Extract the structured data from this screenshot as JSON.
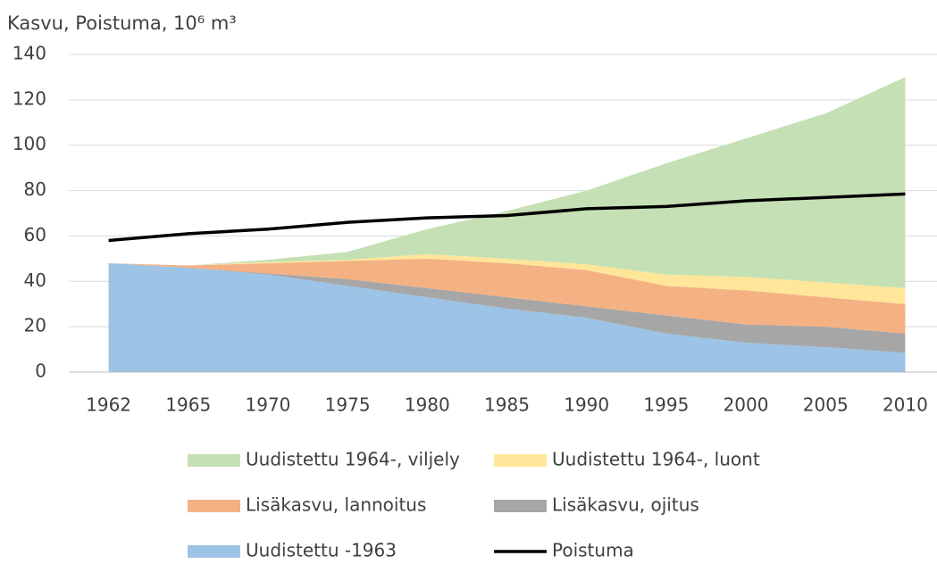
{
  "chart_data": {
    "type": "area",
    "stacked": true,
    "title": "Kasvu, Poistuma, 10⁶ m³",
    "categories": [
      "1962",
      "1965",
      "1970",
      "1975",
      "1980",
      "1985",
      "1990",
      "1995",
      "2000",
      "2005",
      "2010"
    ],
    "series": [
      {
        "name": "Uudistettu -1963",
        "color": "#9dc3e6",
        "values": [
          48,
          46,
          43,
          38,
          33,
          28,
          24,
          17,
          13,
          11,
          8.5
        ]
      },
      {
        "name": "Lisäkasvu, ojitus",
        "color": "#a6a6a6",
        "values": [
          0,
          0,
          0.5,
          3,
          4,
          5,
          5,
          8,
          8,
          9,
          8.5
        ]
      },
      {
        "name": "Lisäkasvu, lannoitus",
        "color": "#f4b183",
        "values": [
          0,
          1,
          4.5,
          8,
          13,
          15,
          16,
          13,
          15,
          13,
          13
        ]
      },
      {
        "name": "Uudistettu 1964-, luont",
        "color": "#ffe699",
        "values": [
          0,
          0,
          0.5,
          0.5,
          2,
          2,
          2.5,
          5,
          6,
          6.5,
          7
        ]
      },
      {
        "name": "Uudistettu 1964-, viljely",
        "color": "#c5e0b4",
        "values": [
          0,
          0,
          1,
          3.5,
          11,
          21,
          32.5,
          49,
          61,
          74.5,
          93
        ]
      },
      {
        "name": "Poistuma",
        "color": "#000000",
        "type": "line",
        "values": [
          58,
          61,
          63,
          66,
          68,
          69,
          72,
          73,
          75.5,
          77,
          78.5
        ]
      }
    ],
    "ylim": [
      0,
      140
    ],
    "yticks": [
      0,
      20,
      40,
      60,
      80,
      100,
      120,
      140
    ],
    "grid": true
  }
}
